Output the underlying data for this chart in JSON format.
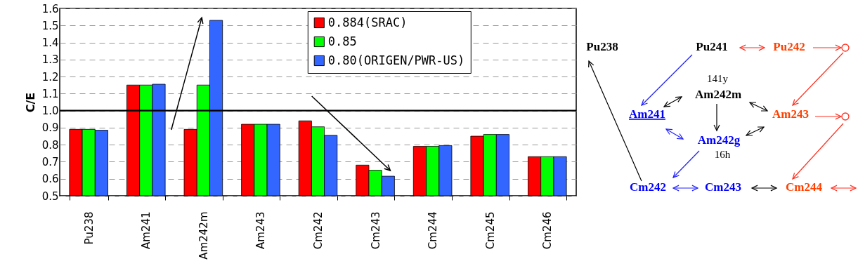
{
  "chart_data": [
    {
      "type": "bar",
      "ylabel": "C/E",
      "categories": [
        "Pu238",
        "Am241",
        "Am242m",
        "Am243",
        "Cm242",
        "Cm243",
        "Cm244",
        "Cm245",
        "Cm246"
      ],
      "series": [
        {
          "name": "0.884(SRAC)",
          "color": "#ff0000",
          "values": [
            0.89,
            1.15,
            0.89,
            0.92,
            0.94,
            0.68,
            0.79,
            0.85,
            0.73
          ]
        },
        {
          "name": "0.85",
          "color": "#00ff00",
          "values": [
            0.89,
            1.15,
            1.15,
            0.92,
            0.905,
            0.65,
            0.79,
            0.86,
            0.73
          ]
        },
        {
          "name": "0.80(ORIGEN/PWR-US)",
          "color": "#3366ff",
          "values": [
            0.885,
            1.155,
            1.53,
            0.92,
            0.855,
            0.615,
            0.795,
            0.86,
            0.73
          ]
        }
      ],
      "ylim": [
        0.5,
        1.6
      ],
      "yticks": [
        0.5,
        0.6,
        0.7,
        0.8,
        0.9,
        {
          "value": 1,
          "label": "1.0"
        },
        1.1,
        1.2,
        1.3,
        1.4,
        1.5,
        1.6
      ],
      "ref_lines": [
        {
          "axis": "y",
          "value": 1,
          "color": "#000000"
        }
      ],
      "grid": "y",
      "legend": "top"
    },
    {
      "type": "other",
      "annotations": [
        "Pu238",
        "Pu241",
        "Pu242",
        "141y",
        "Am242m",
        "Am241",
        "Am243",
        "Am242g",
        "16h",
        "Cm242",
        "Cm243",
        "Cm244"
      ],
      "colors": [
        "#000000",
        "#000000",
        "#ff4000",
        "#000000",
        "#000000",
        "#0000ff",
        "#ff4000",
        "#0000ff",
        "#000000",
        "#0000ff",
        "#0000ff",
        "#ff4000"
      ]
    }
  ]
}
